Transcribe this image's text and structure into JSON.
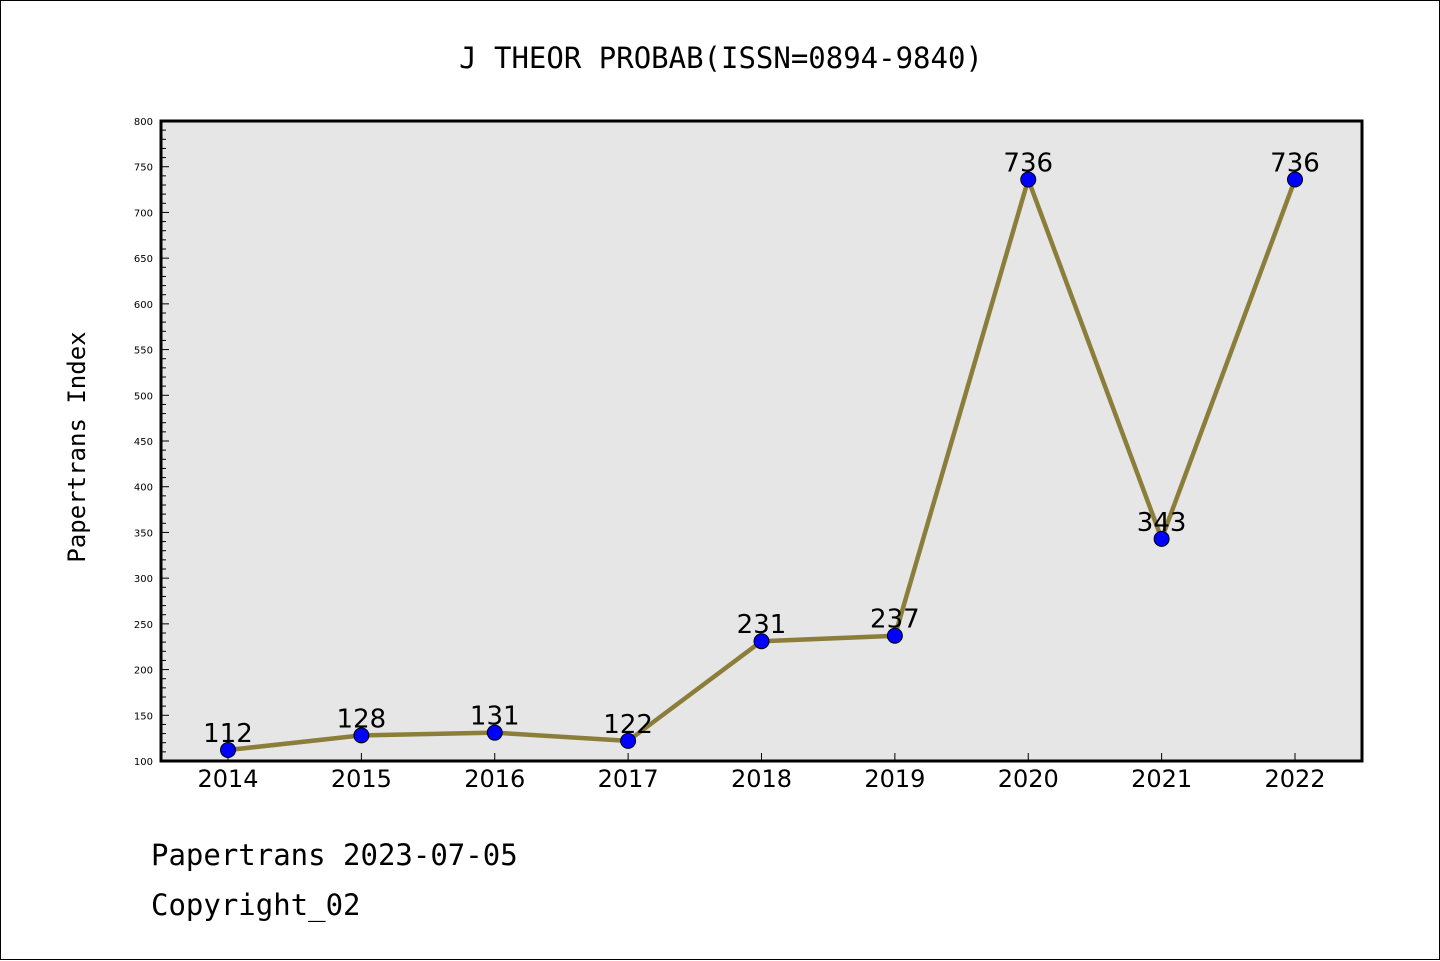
{
  "chart_data": {
    "type": "line",
    "title": "J THEOR PROBAB(ISSN=0894-9840)",
    "xlabel": "",
    "ylabel": "Papertrans Index",
    "categories": [
      "2014",
      "2015",
      "2016",
      "2017",
      "2018",
      "2019",
      "2020",
      "2021",
      "2022"
    ],
    "series": [
      {
        "values": [
          112,
          128,
          131,
          122,
          231,
          237,
          736,
          343,
          736
        ]
      }
    ],
    "ylim": [
      100,
      800
    ],
    "yticks": [
      100,
      150,
      200,
      250,
      300,
      350,
      400,
      450,
      500,
      550,
      600,
      650,
      700,
      750,
      800
    ],
    "grid": false,
    "legend": "none",
    "colors": {
      "line": "#8B7D3A",
      "marker": "#0000FF",
      "plot_background": "#E6E6E6"
    }
  },
  "footer": {
    "line1": "Papertrans 2023-07-05",
    "line2": "Copyright_02"
  }
}
